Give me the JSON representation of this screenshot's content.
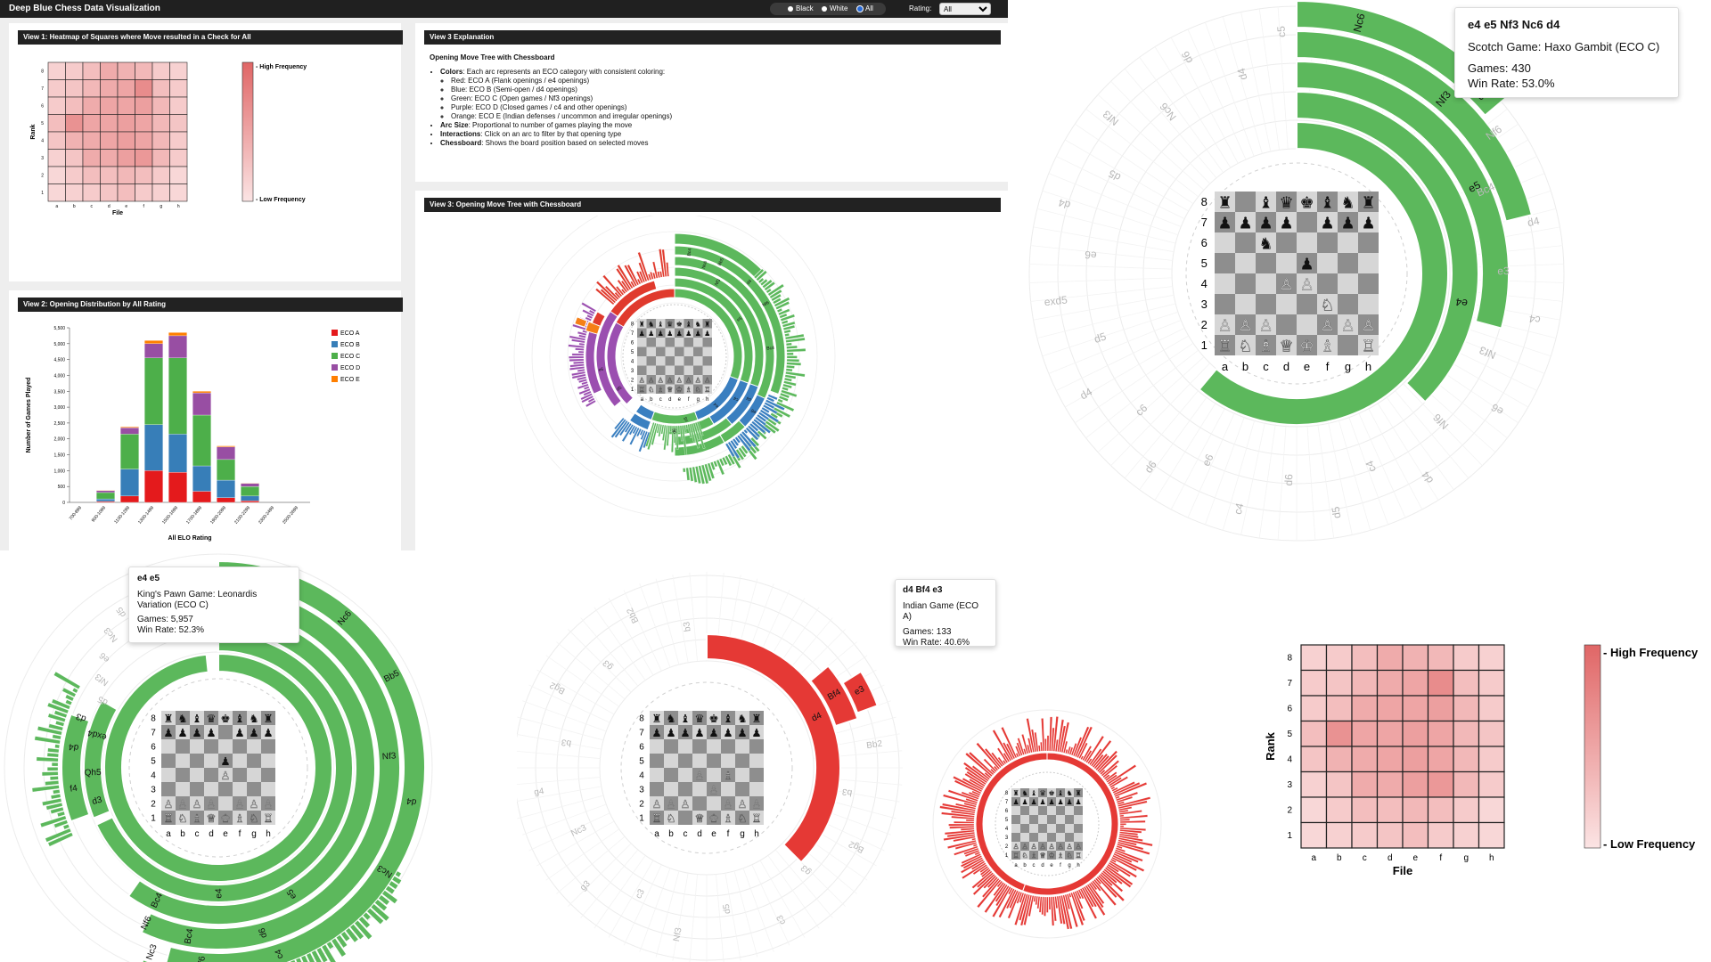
{
  "header": {
    "title": "Deep Blue Chess Data Visualization",
    "radio_black": "Black",
    "radio_white": "White",
    "radio_all": "All",
    "rating_label": "Rating:",
    "rating_value": "All"
  },
  "view1": {
    "title": "View 1: Heatmap of Squares where Move resulted in a Check for All",
    "high_label": "- High Frequency",
    "low_label": "- Low Frequency",
    "xlabel": "File",
    "ylabel": "Rank"
  },
  "view2": {
    "title": "View 2: Opening Distribution by All Rating"
  },
  "view3_expl": {
    "title": "View 3 Explanation",
    "heading": "Opening Move Tree with Chessboard",
    "colors_key": "Colors",
    "colors_text": ": Each arc represents an ECO category with consistent coloring:",
    "sub": [
      "Red: ECO A (Flank openings / e4 openings)",
      "Blue: ECO B (Semi-open / d4 openings)",
      "Green: ECO C (Open games / Nf3 openings)",
      "Purple: ECO D (Closed games / c4 and other openings)",
      "Orange: ECO E (Indian defenses / uncommon and irregular openings)"
    ],
    "arc_key": "Arc Size",
    "arc_text": ": Proportional to number of games playing the move",
    "inter_key": "Interactions",
    "inter_text": ": Click on an arc to filter by that opening type",
    "board_key": "Chessboard",
    "board_text": ": Shows the board position based on selected moves"
  },
  "view3": {
    "title": "View 3: Opening Move Tree with Chessboard"
  },
  "board": {
    "files": [
      "a",
      "b",
      "c",
      "d",
      "e",
      "f",
      "g",
      "h"
    ],
    "ranks": [
      "8",
      "7",
      "6",
      "5",
      "4",
      "3",
      "2",
      "1"
    ]
  },
  "heatmap": {
    "matrix": [
      [
        0.15,
        0.2,
        0.3,
        0.45,
        0.4,
        0.35,
        0.2,
        0.15
      ],
      [
        0.2,
        0.25,
        0.35,
        0.45,
        0.5,
        0.7,
        0.3,
        0.2
      ],
      [
        0.2,
        0.3,
        0.45,
        0.5,
        0.5,
        0.55,
        0.35,
        0.2
      ],
      [
        0.3,
        0.65,
        0.5,
        0.5,
        0.55,
        0.5,
        0.35,
        0.25
      ],
      [
        0.25,
        0.4,
        0.45,
        0.5,
        0.55,
        0.5,
        0.35,
        0.2
      ],
      [
        0.15,
        0.25,
        0.45,
        0.45,
        0.55,
        0.6,
        0.35,
        0.2
      ],
      [
        0.1,
        0.2,
        0.3,
        0.3,
        0.35,
        0.3,
        0.2,
        0.1
      ],
      [
        0.1,
        0.15,
        0.2,
        0.25,
        0.3,
        0.2,
        0.15,
        0.1
      ]
    ],
    "color_high": "#e06666",
    "color_low": "#fbe4e4"
  },
  "chart_data": {
    "type": "bar",
    "stacked": true,
    "categories": [
      "700-899",
      "900-1099",
      "1100-1299",
      "1300-1499",
      "1500-1699",
      "1700-1899",
      "1900-2099",
      "2100-2299",
      "2300-2499",
      "2500-2699"
    ],
    "series": [
      {
        "name": "ECO A",
        "color": "#e41a1c",
        "values": [
          0,
          30,
          200,
          1000,
          950,
          350,
          150,
          50,
          0,
          0
        ]
      },
      {
        "name": "ECO B",
        "color": "#377eb8",
        "values": [
          0,
          80,
          850,
          1450,
          1200,
          800,
          550,
          150,
          0,
          0
        ]
      },
      {
        "name": "ECO C",
        "color": "#4daf4a",
        "values": [
          0,
          200,
          1100,
          2100,
          2400,
          1600,
          650,
          300,
          0,
          0
        ]
      },
      {
        "name": "ECO D",
        "color": "#984ea3",
        "values": [
          0,
          60,
          200,
          450,
          700,
          700,
          400,
          100,
          0,
          0
        ]
      },
      {
        "name": "ECO E",
        "color": "#ff7f00",
        "values": [
          0,
          10,
          30,
          100,
          100,
          50,
          30,
          10,
          0,
          0
        ]
      }
    ],
    "yticks": [
      "0",
      "500",
      "1,000",
      "1,500",
      "2,000",
      "2,500",
      "3,000",
      "3,500",
      "4,000",
      "4,500",
      "5,000",
      "5,500"
    ],
    "xlabel": "All ELO Rating",
    "ylabel": "Number of Games Played",
    "ylim": [
      0,
      5500
    ],
    "legend": "top-right"
  },
  "tree_labels": [
    "Bc4",
    "Nc6",
    "Bb5",
    "d4",
    "Nf3",
    "e5",
    "Nf6",
    "Bc4",
    "e4",
    "c4",
    "d4",
    "e6",
    "c5",
    "d6",
    "d5",
    "e6"
  ],
  "zoom_top": {
    "tooltip": {
      "moves": "e4 e5 Nf3 Nc6 d4",
      "name": "Scotch Game: Haxo Gambit (ECO C)",
      "games": "Games: 430",
      "win": "Win Rate: 53.0%"
    },
    "arc_labels": [
      "Nc6",
      "d4",
      "Nf3",
      "e5",
      "e4"
    ],
    "ghost_labels": [
      "Bc4",
      "Bb5",
      "d4",
      "d6",
      "Nf6",
      "Bc4",
      "d4",
      "e3",
      "c4",
      "Nf3",
      "e6",
      "Nf6",
      "d4",
      "c4",
      "d5",
      "d6",
      "c4",
      "e6",
      "d6",
      "c6",
      "d4",
      "d5",
      "exd5",
      "e6",
      "d4",
      "d5",
      "Nf3",
      "Nc6",
      "d6",
      "d4",
      "c5"
    ]
  },
  "zoom_bl": {
    "tooltip": {
      "moves": "e4 e5",
      "name": "King's Pawn Game: Leonardis Variation (ECO C)",
      "games": "Games: 5,957",
      "win": "Win Rate: 52.3%"
    },
    "arc_labels": [
      "Nc6",
      "Bb5",
      "Nf3",
      "d4",
      "Nc3",
      "e5",
      "e4",
      "d6",
      "c4",
      "Bc4",
      "Nf6",
      "Nf6",
      "Nc3",
      "Bc4",
      "d3",
      "Qh5",
      "f4",
      "d4",
      "exd4",
      "d3"
    ],
    "ghost_labels": [
      "d5",
      "Nf3",
      "e6",
      "Nc3",
      "d5",
      "e5"
    ]
  },
  "zoom_bm": {
    "tooltip": {
      "moves": "d4 Bf4 e3",
      "name": "Indian Game (ECO A)",
      "games": "Games: 133",
      "win": "Win Rate: 40.6%"
    },
    "arc_labels": [
      "e3",
      "Bf4",
      "d4"
    ],
    "ghost_labels": [
      "Nc3",
      "Nf3",
      "Nf3",
      "e3",
      "Bb2",
      "b3",
      "Bg2",
      "g3",
      "c3",
      "d5",
      "Nf3",
      "c3",
      "g3",
      "Nc3",
      "g4",
      "b3",
      "Bg2",
      "g3",
      "Bb2",
      "b3"
    ]
  },
  "big_heatmap": {
    "high_label": "- High Frequency",
    "low_label": "- Low Frequency",
    "xlabel": "File",
    "ylabel": "Rank"
  }
}
